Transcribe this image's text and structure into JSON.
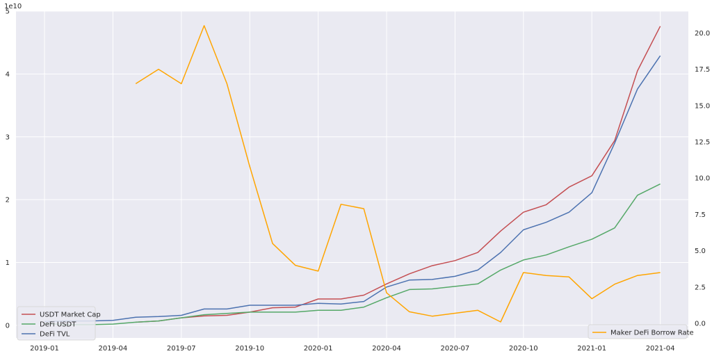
{
  "chart_data": {
    "type": "line",
    "title": "",
    "x": [
      "2019-01",
      "2019-02",
      "2019-03",
      "2019-04",
      "2019-05",
      "2019-06",
      "2019-07",
      "2019-08",
      "2019-09",
      "2019-10",
      "2019-11",
      "2019-12",
      "2020-01",
      "2020-02",
      "2020-03",
      "2020-04",
      "2020-05",
      "2020-06",
      "2020-07",
      "2020-08",
      "2020-09",
      "2020-10",
      "2020-11",
      "2020-12",
      "2021-01",
      "2021-02",
      "2021-03",
      "2021-04"
    ],
    "x_tick_labels": [
      "2019-01",
      "2019-04",
      "2019-07",
      "2019-10",
      "2020-01",
      "2020-04",
      "2020-07",
      "2020-10",
      "2021-01",
      "2021-04"
    ],
    "left_axis": {
      "ylim": [
        -0.2,
        5.0
      ],
      "ticks": [
        0,
        1,
        2,
        3,
        4,
        5
      ],
      "scale_label": "1e10"
    },
    "right_axis": {
      "ylim": [
        -1.0,
        21.5
      ],
      "ticks": [
        "0.0",
        "2.5",
        "5.0",
        "7.5",
        "10.0",
        "12.5",
        "15.0",
        "17.5",
        "20.0"
      ]
    },
    "grid": true,
    "series": [
      {
        "name": "USDT Market Cap",
        "axis": "left",
        "color": "#c44e52",
        "values": [
          null,
          null,
          null,
          null,
          0.05,
          0.07,
          0.12,
          0.15,
          0.16,
          0.21,
          0.28,
          0.29,
          0.42,
          0.42,
          0.48,
          0.66,
          0.82,
          0.95,
          1.03,
          1.16,
          1.5,
          1.8,
          1.92,
          2.2,
          2.38,
          2.94,
          4.05,
          4.76
        ]
      },
      {
        "name": "DeFi USDT",
        "axis": "left",
        "color": "#55a868",
        "values": [
          0.03,
          0.01,
          0.01,
          0.02,
          0.05,
          0.07,
          0.12,
          0.17,
          0.19,
          0.21,
          0.21,
          0.21,
          0.24,
          0.24,
          0.29,
          0.44,
          0.57,
          0.58,
          0.62,
          0.66,
          0.88,
          1.04,
          1.12,
          1.25,
          1.37,
          1.55,
          2.07,
          2.25
        ]
      },
      {
        "name": "DeFi TVL",
        "axis": "left",
        "color": "#4c72b0",
        "values": [
          0.06,
          0.07,
          0.07,
          0.08,
          0.13,
          0.14,
          0.16,
          0.26,
          0.26,
          0.32,
          0.32,
          0.32,
          0.35,
          0.34,
          0.38,
          0.61,
          0.72,
          0.73,
          0.78,
          0.88,
          1.16,
          1.52,
          1.64,
          1.8,
          2.11,
          2.9,
          3.76,
          4.29
        ]
      },
      {
        "name": "Maker DeFi Borrow Rate",
        "axis": "right",
        "color": "#ffa500",
        "values": [
          null,
          null,
          null,
          null,
          16.5,
          17.5,
          16.5,
          20.5,
          16.5,
          10.8,
          5.5,
          4.0,
          3.6,
          8.2,
          7.9,
          2.1,
          0.8,
          0.5,
          0.7,
          0.9,
          0.1,
          3.5,
          3.3,
          3.2,
          1.7,
          2.7,
          3.3,
          3.5
        ]
      }
    ],
    "legend_left": [
      "USDT Market Cap",
      "DeFi USDT",
      "DeFi TVL"
    ],
    "legend_left_placement": "lower-left",
    "legend_right": [
      "Maker DeFi Borrow Rate"
    ],
    "legend_right_placement": "lower-right",
    "background_color": "#eaeaf2",
    "grid_color": "#ffffff"
  }
}
